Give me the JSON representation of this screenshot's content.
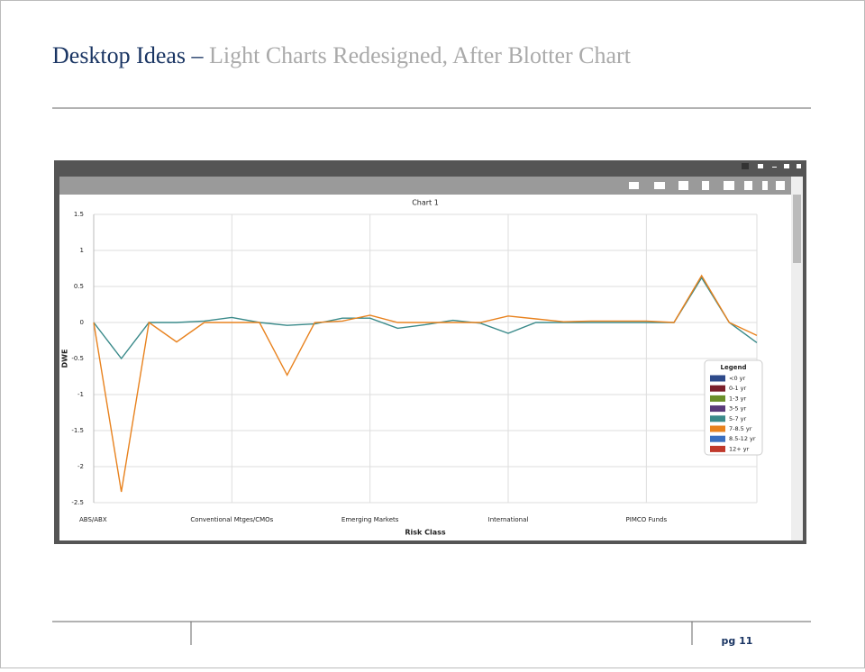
{
  "header": {
    "title": "Desktop Ideas",
    "separator": "–",
    "subtitle": "Light Charts Redesigned, After Blotter Chart"
  },
  "footer": {
    "page": "pg 11"
  },
  "chart_data": {
    "type": "line",
    "title": "Chart 1",
    "x_label": "Risk Class",
    "y_label": "DWE",
    "categories": [
      "ABS/ABX",
      null,
      null,
      null,
      null,
      "Conventional Mtges/CMOs",
      null,
      null,
      null,
      null,
      "Emerging Markets",
      null,
      null,
      null,
      null,
      "International",
      null,
      null,
      null,
      null,
      "PIMCO Funds",
      null,
      null,
      null,
      null
    ],
    "ylim": [
      -2.5,
      1.5
    ],
    "yticks": [
      1.5,
      1,
      0.5,
      0,
      -0.5,
      -1,
      -1.5,
      -2,
      -2.5
    ],
    "grid": true,
    "legend_title": "Legend",
    "legend_position": "right",
    "series": [
      {
        "name": "<0 yr",
        "color": "#2e4a8a"
      },
      {
        "name": "0-1 yr",
        "color": "#7a1f2b"
      },
      {
        "name": "1-3 yr",
        "color": "#6a8f2a"
      },
      {
        "name": "3-5 yr",
        "color": "#5a3a7a"
      },
      {
        "name": "5-7 yr",
        "color": "#3a8a8a",
        "values": [
          0,
          -0.5,
          0,
          0,
          0.02,
          0.07,
          0,
          -0.04,
          -0.02,
          0.06,
          0.06,
          -0.08,
          -0.03,
          0.03,
          -0.01,
          -0.15,
          0,
          0,
          0,
          0,
          0,
          0,
          0.62,
          0,
          -0.28
        ]
      },
      {
        "name": "7-8.5 yr",
        "color": "#e8821e",
        "values": [
          0,
          -2.35,
          0,
          -0.27,
          0,
          0,
          0,
          -0.73,
          0,
          0.02,
          0.1,
          0,
          0,
          0,
          0,
          0.09,
          0.05,
          0.01,
          0.02,
          0.02,
          0.02,
          0,
          0.65,
          0,
          -0.18
        ]
      },
      {
        "name": "8.5-12 yr",
        "color": "#3a6fc0"
      },
      {
        "name": "12+ yr",
        "color": "#c0392b"
      }
    ]
  }
}
